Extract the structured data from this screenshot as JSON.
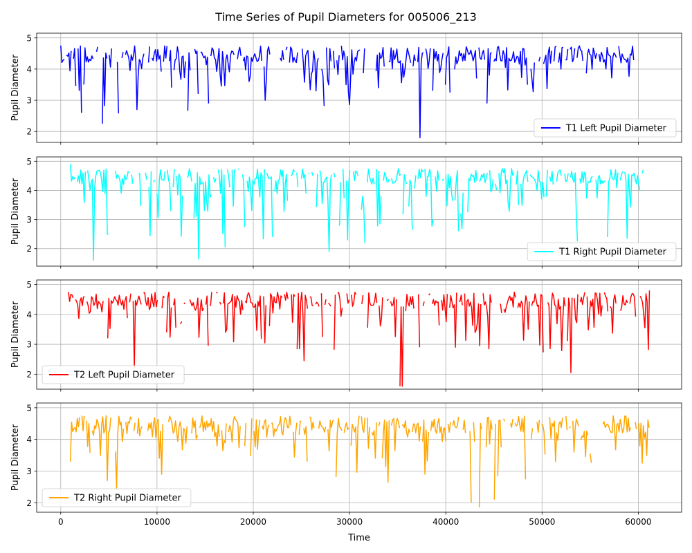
{
  "chart_data": {
    "type": "line",
    "title": "Time Series of Pupil Diameters for 005006_213",
    "xlabel": "Time",
    "xlim": [
      -2500,
      64500
    ],
    "xticks": [
      0,
      10000,
      20000,
      30000,
      40000,
      50000,
      60000
    ],
    "xtick_labels": [
      "0",
      "10000",
      "20000",
      "30000",
      "40000",
      "50000",
      "60000"
    ],
    "grid": true,
    "panels": [
      {
        "ylabel": "Pupil Diameter",
        "ylim": [
          1.65,
          5.15
        ],
        "yticks": [
          2,
          3,
          4,
          5
        ],
        "legend_position": "lower right",
        "series": [
          {
            "name": "T1 Left Pupil Diameter",
            "color": "#0000ff",
            "x": [
              0,
              2200,
              4300,
              7900,
              10000,
              14300,
              15300,
              19500,
              26500,
              29600,
              33000,
              37300,
              40000,
              44300,
              48500,
              52000,
              56500,
              59600
            ],
            "y": [
              4.75,
              2.6,
              2.25,
              2.7,
              4.25,
              3.2,
              2.9,
              3.6,
              3.3,
              3.5,
              3.4,
              1.8,
              3.5,
              2.9,
              3.5,
              4.0,
              4.3,
              4.4
            ]
          }
        ]
      },
      {
        "ylabel": "Pupil Diameter",
        "ylim": [
          1.4,
          5.15
        ],
        "yticks": [
          2,
          3,
          4,
          5
        ],
        "legend_position": "lower right",
        "series": [
          {
            "name": "T1 Right Pupil Diameter",
            "color": "#00ffff",
            "x": [
              1000,
              3400,
              4800,
              9200,
              14300,
              17000,
              22000,
              27800,
              29800,
              31500,
              36500,
              41300,
              47500,
              53600,
              56700,
              58800,
              60600
            ],
            "y": [
              4.9,
              1.6,
              2.5,
              2.45,
              1.65,
              2.05,
              2.4,
              1.9,
              2.3,
              2.2,
              2.65,
              2.6,
              3.5,
              2.25,
              2.4,
              2.35,
              5.0
            ]
          }
        ]
      },
      {
        "ylabel": "Pupil Diameter",
        "ylim": [
          1.5,
          5.15
        ],
        "yticks": [
          2,
          3,
          4,
          5
        ],
        "legend_position": "lower left",
        "series": [
          {
            "name": "T2 Left Pupil Diameter",
            "color": "#ff0000",
            "x": [
              800,
              4900,
              7700,
              12200,
              15300,
              24800,
              25300,
              35300,
              35500,
              37300,
              38000,
              41000,
              43500,
              44500,
              48600,
              53000,
              57200,
              60700,
              61200
            ],
            "y": [
              4.75,
              3.2,
              2.2,
              3.0,
              2.95,
              2.85,
              2.45,
              1.6,
              1.6,
              2.9,
              2.0,
              2.9,
              2.95,
              2.85,
              3.5,
              2.05,
              4.2,
              3.55,
              4.8
            ]
          }
        ]
      },
      {
        "ylabel": "Pupil Diameter",
        "ylim": [
          1.7,
          5.15
        ],
        "yticks": [
          2,
          3,
          4,
          5
        ],
        "legend_position": "lower left",
        "series": [
          {
            "name": "T2 Right Pupil Diameter",
            "color": "#ffa500",
            "x": [
              1000,
              4800,
              5800,
              10400,
              14000,
              25600,
              33300,
              34000,
              37800,
              43400,
              45000,
              48500,
              51300,
              53300,
              55000,
              57000,
              60400,
              61300
            ],
            "y": [
              3.3,
              2.7,
              2.45,
              2.9,
              4.0,
              3.3,
              3.4,
              2.65,
              2.9,
              1.85,
              2.1,
              2.75,
              3.3,
              3.6,
              3.55,
              4.3,
              3.25,
              4.45
            ]
          }
        ]
      }
    ]
  }
}
